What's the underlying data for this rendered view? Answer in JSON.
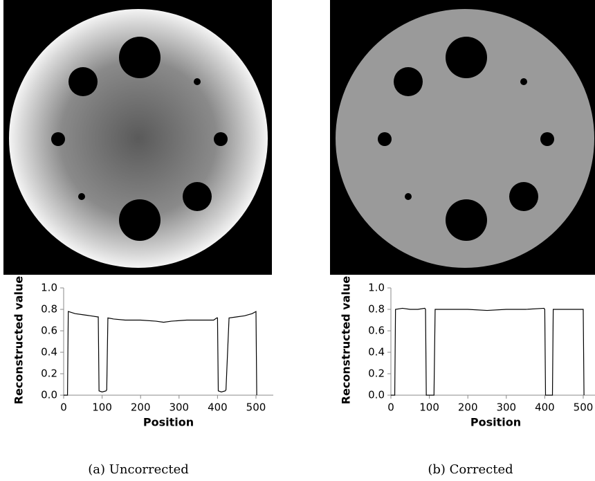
{
  "chart_data": [
    {
      "type": "line",
      "caption": "(a) Uncorrected",
      "x_label": "Position",
      "y_label": "Reconstructed value",
      "x": [
        0,
        10,
        12,
        30,
        50,
        70,
        88,
        90,
        92,
        100,
        110,
        112,
        115,
        130,
        160,
        200,
        240,
        260,
        280,
        320,
        360,
        390,
        398,
        400,
        402,
        410,
        420,
        422,
        430,
        450,
        470,
        490,
        500,
        502
      ],
      "values": [
        0,
        0,
        0.78,
        0.76,
        0.75,
        0.74,
        0.73,
        0.73,
        0.04,
        0.03,
        0.04,
        0.05,
        0.72,
        0.71,
        0.7,
        0.7,
        0.69,
        0.68,
        0.69,
        0.7,
        0.7,
        0.7,
        0.72,
        0.72,
        0.04,
        0.03,
        0.04,
        0.05,
        0.72,
        0.73,
        0.74,
        0.76,
        0.78,
        0
      ],
      "color": "#000000",
      "xlim": [
        0,
        545
      ],
      "ylim": [
        0,
        1
      ],
      "xticks": [
        0,
        100,
        200,
        300,
        400,
        500
      ],
      "yticks": [
        {
          "value": 0,
          "label": "0.0"
        },
        0.2,
        0.4,
        0.6,
        0.8,
        {
          "value": 1,
          "label": "1.0"
        }
      ]
    },
    {
      "type": "line",
      "caption": "(b) Corrected",
      "x_label": "Position",
      "y_label": "Reconstructed value",
      "x": [
        0,
        10,
        12,
        30,
        50,
        70,
        88,
        90,
        92,
        100,
        110,
        112,
        115,
        150,
        200,
        250,
        300,
        350,
        398,
        400,
        402,
        410,
        418,
        420,
        422,
        450,
        480,
        500,
        502
      ],
      "values": [
        0,
        0,
        0.8,
        0.81,
        0.8,
        0.8,
        0.81,
        0.8,
        0,
        0,
        0,
        0,
        0.8,
        0.8,
        0.8,
        0.79,
        0.8,
        0.8,
        0.81,
        0.8,
        0,
        0,
        0,
        0,
        0.8,
        0.8,
        0.8,
        0.8,
        0
      ],
      "color": "#000000",
      "xlim": [
        0,
        545
      ],
      "ylim": [
        0,
        1
      ],
      "xticks": [
        0,
        100,
        200,
        300,
        400,
        500
      ],
      "yticks": [
        {
          "value": 0,
          "label": "0.0"
        },
        0.2,
        0.4,
        0.6,
        0.8,
        {
          "value": 1,
          "label": "1.0"
        }
      ]
    }
  ]
}
